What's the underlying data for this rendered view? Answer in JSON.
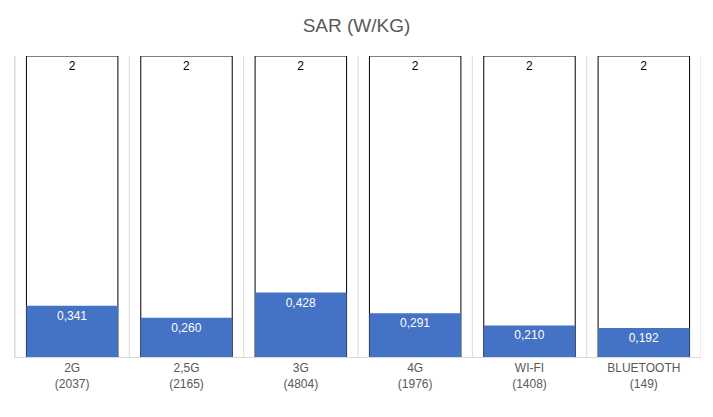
{
  "chart_data": {
    "type": "bar",
    "title": "SAR (W/KG)",
    "categories": [
      "2G\n(2037)",
      "2,5G\n(2165)",
      "3G\n(4804)",
      "4G\n(1976)",
      "WI-FI\n(1408)",
      "BLUETOOTH\n(149)"
    ],
    "series": [
      {
        "color": "#ffffff",
        "values": [
          2,
          2,
          2,
          2,
          2,
          2
        ]
      },
      {
        "color": "#4472c4",
        "values": [
          0.341,
          0.26,
          0.428,
          0.291,
          0.21,
          0.192
        ],
        "value_labels": [
          "0,341",
          "0,260",
          "0,428",
          "0,291",
          "0,210",
          "0,192"
        ]
      }
    ],
    "ylim": [
      0,
      2
    ],
    "grid": false,
    "data_labels": true,
    "tick_labels": "x",
    "stacked": false
  }
}
